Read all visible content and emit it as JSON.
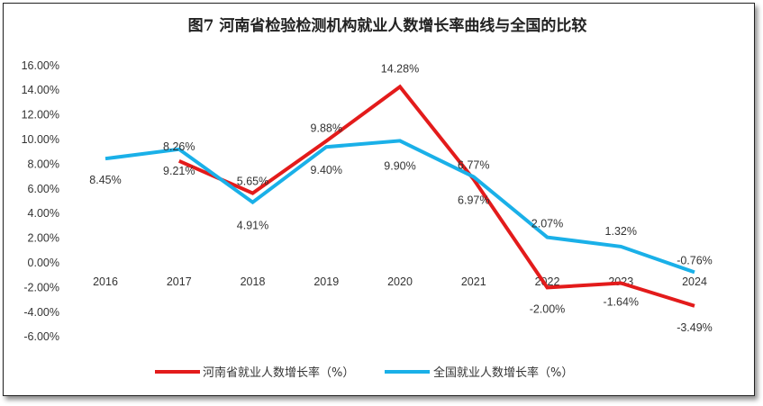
{
  "chart_data": {
    "type": "line",
    "title": "图7  河南省检验检测机构就业人数增长率曲线与全国的比较",
    "categories": [
      "2016",
      "2017",
      "2018",
      "2019",
      "2020",
      "2021",
      "2022",
      "2023",
      "2024"
    ],
    "ylim": [
      -6,
      16
    ],
    "yticks": [
      16,
      14,
      12,
      10,
      8,
      6,
      4,
      2,
      0,
      -2,
      -4,
      -6
    ],
    "ytick_labels": [
      "16.00%",
      "14.00%",
      "12.00%",
      "10.00%",
      "8.00%",
      "6.00%",
      "4.00%",
      "2.00%",
      "0.00%",
      "-2.00%",
      "-4.00%",
      "-6.00%"
    ],
    "grid": false,
    "legend_position": "bottom",
    "series": [
      {
        "name": "河南省就业人数增长率（%）",
        "color": "#e31b1b",
        "values": [
          null,
          8.26,
          5.65,
          9.88,
          14.28,
          6.77,
          -2.0,
          -1.64,
          -3.49
        ],
        "labels": [
          "",
          "8.26%",
          "5.65%",
          "9.88%",
          "14.28%",
          "6.77%",
          "-2.00%",
          "-1.64%",
          "-3.49%"
        ]
      },
      {
        "name": "全国就业人数增长率（%）",
        "color": "#1ab0e8",
        "values": [
          8.45,
          9.21,
          4.91,
          9.4,
          9.9,
          6.97,
          2.07,
          1.32,
          -0.76
        ],
        "labels": [
          "8.45%",
          "9.21%",
          "4.91%",
          "9.40%",
          "9.90%",
          "6.97%",
          "2.07%",
          "1.32%",
          "-0.76%"
        ]
      }
    ]
  }
}
